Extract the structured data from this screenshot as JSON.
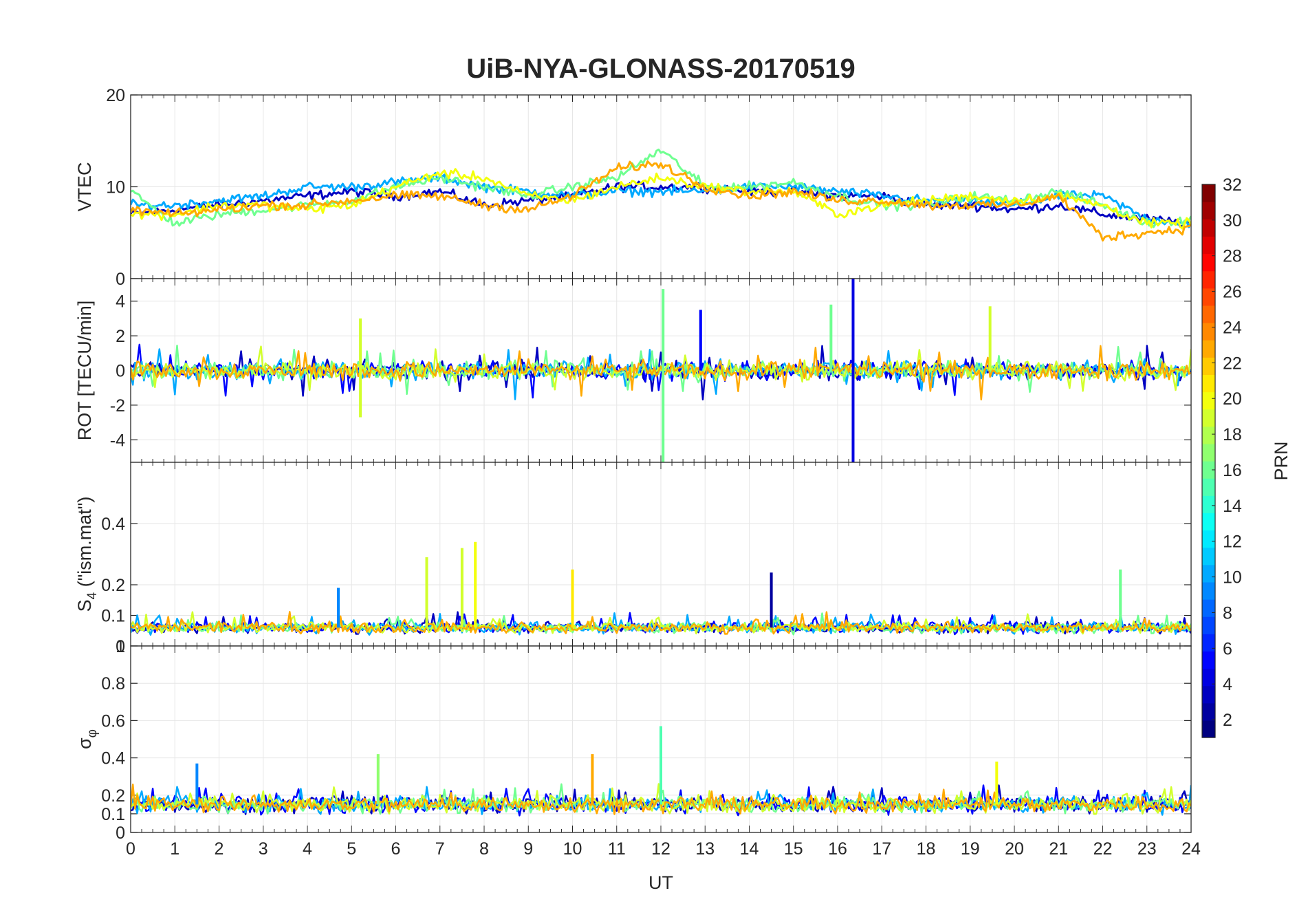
{
  "chart_data": {
    "title": "UiB-NYA-GLONASS-20170519",
    "type": "line",
    "x_label": "UT",
    "x_range": [
      0,
      24
    ],
    "x_ticks": [
      "0",
      "1",
      "2",
      "3",
      "4",
      "5",
      "6",
      "7",
      "8",
      "9",
      "10",
      "11",
      "12",
      "13",
      "14",
      "15",
      "16",
      "17",
      "18",
      "19",
      "20",
      "21",
      "22",
      "23",
      "24"
    ],
    "colorbar": {
      "label": "PRN",
      "range": [
        1,
        32
      ],
      "ticks": [
        "2",
        "4",
        "6",
        "8",
        "10",
        "12",
        "14",
        "16",
        "18",
        "20",
        "22",
        "24",
        "26",
        "28",
        "30",
        "32"
      ],
      "colormap": "jet"
    },
    "panels": [
      {
        "name": "VTEC",
        "ylabel": "VTEC",
        "ylim": [
          0,
          20
        ],
        "y_ticks": [
          "0",
          "10",
          "20"
        ],
        "series_summary": [
          {
            "prn": 3,
            "x": [
              0,
              1,
              2,
              3,
              4,
              5,
              6,
              7,
              8,
              9,
              10,
              11,
              12,
              13,
              14,
              15,
              16,
              17,
              18,
              19,
              20,
              21,
              22,
              23,
              24
            ],
            "y": [
              7,
              7.5,
              8,
              8.5,
              9,
              9.5,
              9,
              9.5,
              8,
              8.5,
              9,
              10,
              10,
              10,
              9.5,
              9.5,
              9,
              9,
              8,
              8,
              7.5,
              8,
              7,
              6.5,
              6
            ]
          },
          {
            "prn": 10,
            "x": [
              0,
              1,
              2,
              3,
              4,
              5,
              6,
              7,
              8,
              9,
              10,
              11,
              12,
              13,
              14,
              15,
              16,
              17,
              18,
              19,
              20,
              21,
              22,
              23,
              24
            ],
            "y": [
              8,
              8,
              8.5,
              9,
              10,
              10,
              10.5,
              11,
              10,
              9.5,
              9,
              9.5,
              9.5,
              9.5,
              10,
              10,
              9.5,
              9,
              8.5,
              8.5,
              8,
              9,
              9,
              6.5,
              6
            ]
          },
          {
            "prn": 16,
            "x": [
              0,
              1,
              2,
              3,
              4,
              5,
              6,
              7,
              8,
              9,
              10,
              11,
              12,
              13,
              14,
              15,
              16,
              17,
              18,
              19,
              20,
              21,
              22,
              23,
              24
            ],
            "y": [
              9.5,
              6,
              7,
              7.5,
              8,
              8.5,
              10,
              11,
              10,
              9,
              10,
              11,
              14,
              10,
              10,
              10.5,
              9,
              8,
              8,
              9,
              8.5,
              9.5,
              8,
              6,
              6.5
            ]
          },
          {
            "prn": 20,
            "x": [
              0,
              1,
              2,
              3,
              4,
              5,
              6,
              7,
              8,
              9,
              10,
              11,
              12,
              13,
              14,
              15,
              16,
              17,
              18,
              19,
              20,
              21,
              22,
              23,
              24
            ],
            "y": [
              7,
              7,
              8,
              8,
              7.5,
              8,
              10,
              11.5,
              11,
              9,
              8.5,
              10,
              11,
              10,
              9.5,
              9.5,
              7,
              8,
              8.5,
              9,
              8.5,
              9,
              8,
              6,
              6
            ]
          },
          {
            "prn": 23,
            "x": [
              0,
              1,
              2,
              3,
              4,
              5,
              6,
              7,
              8,
              9,
              10,
              11,
              12,
              13,
              14,
              15,
              16,
              17,
              18,
              19,
              20,
              21,
              22,
              23,
              24
            ],
            "y": [
              7.5,
              7,
              7.5,
              8,
              8,
              8.5,
              9,
              9,
              8,
              7.5,
              9,
              12,
              12.5,
              10,
              9,
              9.5,
              8.5,
              8.5,
              8,
              8,
              8,
              9,
              4.5,
              5,
              5.5
            ]
          }
        ]
      },
      {
        "name": "ROT",
        "ylabel": "ROT [TECU/min]",
        "ylim": [
          -5.3,
          5.3
        ],
        "y_ticks": [
          "-4",
          "-2",
          "0",
          "2",
          "4"
        ],
        "notable_peaks": [
          {
            "x": 12.05,
            "y": 4.7,
            "prn": 16
          },
          {
            "x": 12.05,
            "y": -5.3,
            "prn": 16
          },
          {
            "x": 16.35,
            "y": 5.3,
            "prn": 4
          },
          {
            "x": 16.35,
            "y": -5.3,
            "prn": 4
          },
          {
            "x": 12.9,
            "y": 3.5,
            "prn": 5
          },
          {
            "x": 15.85,
            "y": 3.8,
            "prn": 16
          },
          {
            "x": 19.45,
            "y": 3.7,
            "prn": 19
          },
          {
            "x": 5.2,
            "y": 3.0,
            "prn": 19
          },
          {
            "x": 5.2,
            "y": -2.7,
            "prn": 19
          }
        ]
      },
      {
        "name": "S4",
        "ylabel": "S4 (\"ism.mat\")",
        "ylabel_main": "S",
        "ylabel_sub": "4",
        "ylabel_rest": " (\"ism.mat\")",
        "ylim": [
          0,
          0.6
        ],
        "y_ticks": [
          "0",
          "0.1",
          "0.2",
          "0.4"
        ],
        "notable_peaks": [
          {
            "x": 6.7,
            "y": 0.29,
            "prn": 19
          },
          {
            "x": 7.5,
            "y": 0.32,
            "prn": 19
          },
          {
            "x": 7.8,
            "y": 0.34,
            "prn": 20
          },
          {
            "x": 14.5,
            "y": 0.24,
            "prn": 2
          },
          {
            "x": 22.4,
            "y": 0.25,
            "prn": 16
          },
          {
            "x": 4.7,
            "y": 0.19,
            "prn": 9
          },
          {
            "x": 10.0,
            "y": 0.25,
            "prn": 21
          }
        ]
      },
      {
        "name": "sigma_phi",
        "ylabel": "σφ",
        "ylabel_main": "σ",
        "ylabel_sub": "φ",
        "ylim": [
          0,
          1
        ],
        "y_ticks": [
          "0",
          "0.1",
          "0.2",
          "0.4",
          "0.6",
          "0.8",
          "1"
        ],
        "notable_peaks": [
          {
            "x": 12.0,
            "y": 0.57,
            "prn": 15
          },
          {
            "x": 10.45,
            "y": 0.42,
            "prn": 23
          },
          {
            "x": 5.6,
            "y": 0.42,
            "prn": 17
          },
          {
            "x": 19.6,
            "y": 0.38,
            "prn": 20
          },
          {
            "x": 1.5,
            "y": 0.37,
            "prn": 9
          }
        ]
      }
    ]
  }
}
